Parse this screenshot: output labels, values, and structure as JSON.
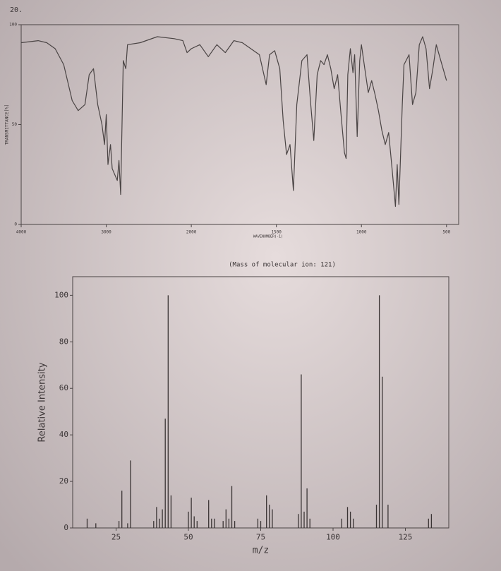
{
  "page_label": "20.",
  "chart_data": [
    {
      "type": "line",
      "xlabel": "WAVENUMBER(-1)",
      "ylabel": "TRANSMITTANCE[%]",
      "x": [
        4000,
        3800,
        3700,
        3600,
        3500,
        3400,
        3330,
        3250,
        3200,
        3150,
        3100,
        3050,
        3020,
        3000,
        2980,
        2950,
        2930,
        2900,
        2870,
        2850,
        2830,
        2800,
        2770,
        2750,
        2600,
        2400,
        2200,
        2100,
        2050,
        2000,
        1950,
        1900,
        1850,
        1800,
        1750,
        1700,
        1650,
        1600,
        1560,
        1540,
        1510,
        1480,
        1460,
        1440,
        1420,
        1400,
        1380,
        1350,
        1320,
        1300,
        1280,
        1260,
        1240,
        1220,
        1200,
        1180,
        1160,
        1140,
        1120,
        1100,
        1090,
        1080,
        1065,
        1050,
        1040,
        1025,
        1010,
        1000,
        980,
        960,
        940,
        920,
        900,
        880,
        860,
        840,
        820,
        800,
        790,
        780,
        760,
        750,
        720,
        700,
        680,
        660,
        640,
        620,
        600,
        580,
        560,
        540,
        500
      ],
      "values": [
        91,
        92,
        91,
        88,
        80,
        62,
        57,
        60,
        75,
        78,
        60,
        50,
        40,
        55,
        30,
        40,
        28,
        25,
        22,
        32,
        15,
        82,
        78,
        90,
        91,
        94,
        93,
        92,
        86,
        88,
        90,
        84,
        90,
        86,
        92,
        91,
        88,
        85,
        70,
        85,
        87,
        78,
        52,
        35,
        40,
        17,
        60,
        82,
        85,
        62,
        42,
        75,
        82,
        80,
        85,
        78,
        68,
        75,
        55,
        36,
        33,
        75,
        88,
        76,
        85,
        44,
        82,
        90,
        78,
        66,
        72,
        65,
        57,
        47,
        40,
        46,
        28,
        9,
        30,
        10,
        60,
        80,
        85,
        60,
        66,
        90,
        94,
        88,
        68,
        78,
        90,
        84,
        72
      ],
      "color": "#4a4444",
      "xlim": [
        4000,
        400
      ],
      "ylim": [
        0,
        100
      ],
      "xticks": [
        4000,
        3000,
        2000,
        1500,
        1000,
        500
      ],
      "yticks": [
        0,
        50,
        100
      ]
    },
    {
      "type": "bar",
      "subtitle": "(Mass of molecular ion:    121)",
      "xlabel": "m/z",
      "ylabel": "Relative Intensity",
      "x": [
        15,
        18,
        26,
        27,
        29,
        30,
        38,
        39,
        40,
        41,
        42,
        43,
        44,
        50,
        51,
        52,
        53,
        57,
        58,
        59,
        62,
        63,
        64,
        65,
        66,
        74,
        75,
        77,
        78,
        79,
        88,
        89,
        90,
        91,
        92,
        103,
        105,
        106,
        107,
        115,
        116,
        117,
        119,
        133,
        134
      ],
      "values": [
        4,
        2,
        3,
        16,
        2,
        29,
        3,
        9,
        4,
        8,
        47,
        100,
        14,
        7,
        13,
        5,
        3,
        12,
        4,
        4,
        3,
        8,
        4,
        18,
        3,
        4,
        3,
        14,
        10,
        8,
        6,
        66,
        7,
        17,
        4,
        4,
        9,
        7,
        4,
        10,
        100,
        65,
        10,
        4,
        6
      ],
      "color": "#3a3434",
      "xlim": [
        10,
        140
      ],
      "ylim": [
        0,
        108
      ],
      "xticks": [
        25,
        50,
        75,
        100,
        125
      ],
      "yticks": [
        0,
        20,
        40,
        60,
        80,
        100
      ]
    }
  ]
}
